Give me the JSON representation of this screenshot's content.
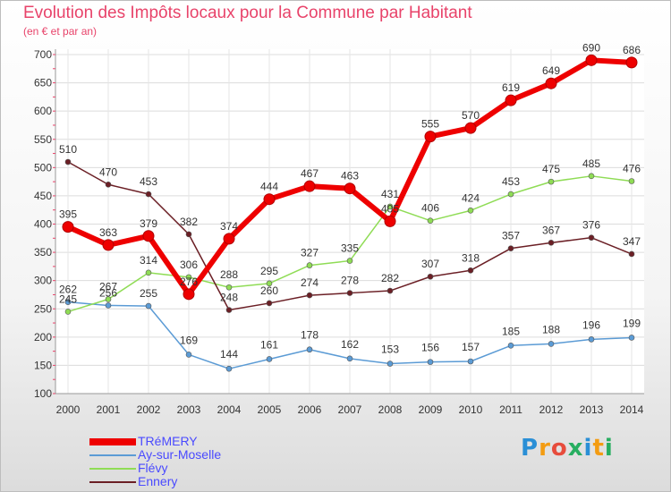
{
  "chart_data": {
    "type": "line",
    "title": "Evolution des Impôts locaux pour la Commune par Habitant",
    "subtitle": "(en € et par an)",
    "xlabel": "",
    "ylabel": "",
    "x": [
      2000,
      2001,
      2002,
      2003,
      2004,
      2005,
      2006,
      2007,
      2008,
      2009,
      2010,
      2011,
      2012,
      2013,
      2014
    ],
    "x_tick_labels": [
      "2000",
      "2001",
      "2002",
      "2003",
      "2004",
      "2005",
      "2006",
      "2007",
      "2008",
      "2009",
      "2010",
      "2011",
      "2012",
      "2013",
      "2014"
    ],
    "ylim": [
      100,
      700
    ],
    "y_ticks": [
      100,
      150,
      200,
      250,
      300,
      350,
      400,
      450,
      500,
      550,
      600,
      650,
      700
    ],
    "y_tick_labels": [
      "100",
      "150",
      "200",
      "250",
      "300",
      "350",
      "400",
      "450",
      "500",
      "550",
      "600",
      "650",
      "700"
    ],
    "grid": true,
    "legend_position": "bottom-left",
    "series": [
      {
        "name": "TRéMERY",
        "color": "#ee0000",
        "values": [
          395,
          363,
          379,
          276,
          374,
          444,
          467,
          463,
          405,
          555,
          570,
          619,
          649,
          690,
          686
        ],
        "labels": [
          "395",
          "363",
          "379",
          "276",
          "374",
          "444",
          "467",
          "463",
          "405",
          "555",
          "570",
          "619",
          "649",
          "690",
          "686"
        ]
      },
      {
        "name": "Ay-sur-Moselle",
        "color": "#5b9bd5",
        "values": [
          262,
          256,
          255,
          169,
          144,
          161,
          178,
          162,
          153,
          156,
          157,
          185,
          188,
          196,
          199
        ],
        "labels": [
          "262",
          "256",
          "255",
          "169",
          "144",
          "161",
          "178",
          "162",
          "153",
          "156",
          "157",
          "185",
          "188",
          "196",
          "199"
        ]
      },
      {
        "name": "Flévy",
        "color": "#8fdc55",
        "values": [
          245,
          267,
          314,
          306,
          288,
          295,
          327,
          335,
          431,
          406,
          424,
          453,
          475,
          485,
          476
        ],
        "labels": [
          "245",
          "267",
          "314",
          "306",
          "288",
          "295",
          "327",
          "335",
          "431",
          "406",
          "424",
          "453",
          "475",
          "485",
          "476"
        ]
      },
      {
        "name": "Ennery",
        "color": "#6b1f25",
        "values": [
          510,
          470,
          453,
          382,
          248,
          260,
          274,
          278,
          282,
          307,
          318,
          357,
          367,
          376,
          347
        ],
        "labels": [
          "510",
          "470",
          "453",
          "382",
          "248",
          "260",
          "274",
          "278",
          "282",
          "307",
          "318",
          "357",
          "367",
          "376",
          "347"
        ]
      }
    ]
  },
  "logo": {
    "letters": [
      "P",
      "r",
      "o",
      "x",
      "i",
      "t",
      "i"
    ],
    "colors": [
      "#2a8fd6",
      "#f39c12",
      "#e74c3c",
      "#27ae60",
      "#2a8fd6",
      "#f39c12",
      "#27ae60"
    ]
  }
}
